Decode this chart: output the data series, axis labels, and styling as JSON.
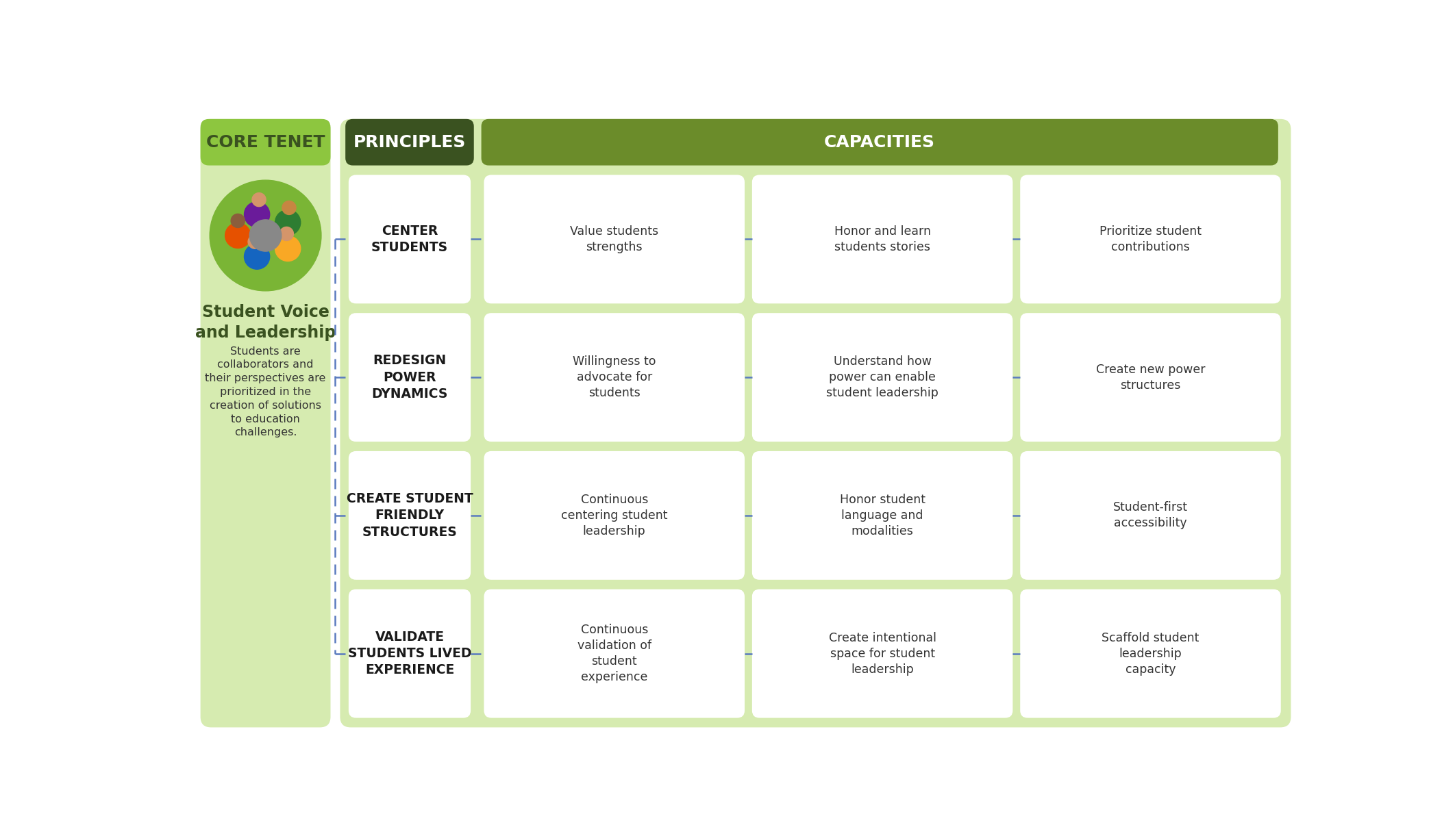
{
  "bg_color": "#ffffff",
  "light_green": "#c8e6a0",
  "medium_green": "#7ab535",
  "dark_green": "#3a5220",
  "core_tenet_bg": "#8dc63f",
  "principles_bg": "#3a5220",
  "capacities_bg": "#6b8c2a",
  "card_bg": "#ffffff",
  "outer_bg": "#d6ebb0",
  "dashed_line_color": "#5a7bbf",
  "core_tenet_label": "CORE TENET",
  "principles_label": "PRINCIPLES",
  "capacities_label": "CAPACITIES",
  "tenet_title": "Student Voice\nand Leadership",
  "tenet_desc": "Students are\ncollaborators and\ntheir perspectives are\nprioritized in the\ncreation of solutions\nto education\nchallenges.",
  "principles": [
    "CENTER\nSTUDENTS",
    "REDESIGN\nPOWER\nDYNAMICS",
    "CREATE STUDENT\nFRIENDLY\nSTRUCTURES",
    "VALIDATE\nSTUDENTS LIVED\nEXPERIENCE"
  ],
  "capacities": [
    [
      "Value students\nstrengths",
      "Honor and learn\nstudents stories",
      "Prioritize student\ncontributions"
    ],
    [
      "Willingness to\nadvocate for\nstudents",
      "Understand how\npower can enable\nstudent leadership",
      "Create new power\nstructures"
    ],
    [
      "Continuous\ncentering student\nleadership",
      "Honor student\nlanguage and\nmodalities",
      "Student-first\naccessibility"
    ],
    [
      "Continuous\nvalidation of\nstudent\nexperience",
      "Create intentional\nspace for student\nleadership",
      "Scaffold student\nleadership\ncapacity"
    ]
  ]
}
